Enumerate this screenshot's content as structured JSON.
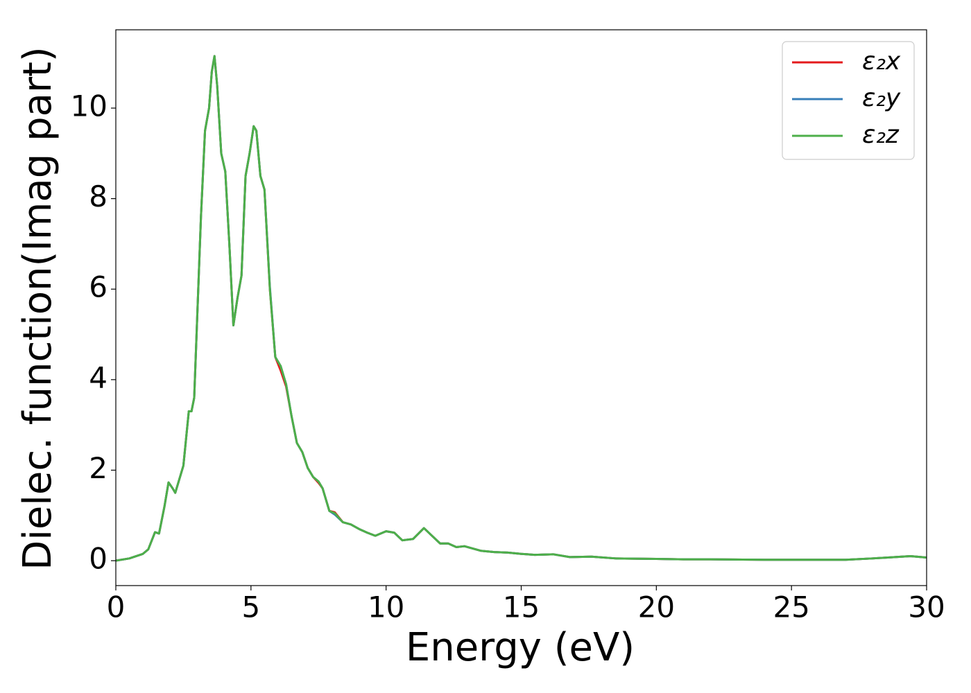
{
  "chart_data": {
    "type": "line",
    "x_label": "Energy (eV)",
    "y_label": "Dielec. function(Imag part)",
    "xlim": [
      0,
      30
    ],
    "xticks": [
      0,
      5,
      10,
      15,
      20,
      25,
      30
    ],
    "ylim": [
      -0.55,
      11.73
    ],
    "yticks": [
      0,
      2,
      4,
      6,
      8,
      10
    ],
    "legend": "upper right",
    "x": [
      0,
      0.5,
      1.0,
      1.2,
      1.45,
      1.6,
      1.8,
      1.95,
      2.1,
      2.2,
      2.5,
      2.7,
      2.8,
      2.9,
      3.0,
      3.15,
      3.3,
      3.45,
      3.55,
      3.65,
      3.75,
      3.9,
      4.05,
      4.2,
      4.35,
      4.5,
      4.65,
      4.8,
      4.95,
      5.1,
      5.2,
      5.35,
      5.5,
      5.7,
      5.9,
      6.1,
      6.3,
      6.5,
      6.7,
      6.9,
      7.1,
      7.3,
      7.5,
      7.65,
      7.9,
      8.1,
      8.4,
      8.7,
      9.0,
      9.3,
      9.6,
      10.0,
      10.3,
      10.6,
      11.0,
      11.4,
      11.7,
      12.0,
      12.3,
      12.6,
      12.9,
      13.5,
      14.0,
      14.5,
      15.0,
      15.5,
      16.2,
      16.8,
      17.6,
      18.5,
      20,
      21,
      22,
      24,
      26,
      27,
      28,
      29.4,
      30
    ],
    "series": [
      {
        "name": "ε₂x",
        "color": "#e41a1c",
        "values": [
          0,
          0.05,
          0.15,
          0.25,
          0.63,
          0.6,
          1.2,
          1.73,
          1.6,
          1.5,
          2.1,
          3.3,
          3.3,
          3.6,
          5.2,
          7.6,
          9.5,
          10.0,
          10.8,
          11.15,
          10.5,
          9.0,
          8.6,
          7.0,
          5.2,
          5.8,
          6.3,
          8.5,
          9.0,
          9.6,
          9.5,
          8.5,
          8.2,
          6.0,
          4.5,
          4.2,
          3.85,
          3.2,
          2.6,
          2.4,
          2.05,
          1.85,
          1.72,
          1.6,
          1.1,
          1.07,
          0.85,
          0.8,
          0.7,
          0.62,
          0.55,
          0.65,
          0.62,
          0.45,
          0.48,
          0.72,
          0.55,
          0.38,
          0.38,
          0.3,
          0.32,
          0.22,
          0.19,
          0.18,
          0.15,
          0.13,
          0.14,
          0.08,
          0.09,
          0.05,
          0.04,
          0.03,
          0.03,
          0.02,
          0.02,
          0.02,
          0.05,
          0.1,
          0.07
        ]
      },
      {
        "name": "ε₂y",
        "color": "#377eb8",
        "values": [
          0,
          0.05,
          0.15,
          0.25,
          0.63,
          0.6,
          1.2,
          1.73,
          1.6,
          1.5,
          2.1,
          3.3,
          3.3,
          3.6,
          5.2,
          7.6,
          9.5,
          10.0,
          10.8,
          11.15,
          10.5,
          9.0,
          8.6,
          7.0,
          5.2,
          5.8,
          6.3,
          8.5,
          9.0,
          9.6,
          9.5,
          8.5,
          8.2,
          6.05,
          4.5,
          4.3,
          3.9,
          3.2,
          2.6,
          2.4,
          2.05,
          1.85,
          1.75,
          1.6,
          1.1,
          1.02,
          0.85,
          0.8,
          0.7,
          0.62,
          0.55,
          0.65,
          0.62,
          0.45,
          0.48,
          0.72,
          0.55,
          0.38,
          0.38,
          0.3,
          0.32,
          0.22,
          0.19,
          0.18,
          0.15,
          0.13,
          0.14,
          0.08,
          0.09,
          0.05,
          0.04,
          0.03,
          0.03,
          0.02,
          0.02,
          0.02,
          0.05,
          0.1,
          0.07
        ]
      },
      {
        "name": "ε₂z",
        "color": "#4daf4a",
        "values": [
          0,
          0.05,
          0.15,
          0.25,
          0.63,
          0.6,
          1.2,
          1.73,
          1.6,
          1.5,
          2.1,
          3.3,
          3.3,
          3.6,
          5.2,
          7.6,
          9.5,
          10.0,
          10.8,
          11.15,
          10.5,
          9.0,
          8.6,
          7.0,
          5.2,
          5.8,
          6.3,
          8.5,
          9.0,
          9.6,
          9.5,
          8.5,
          8.2,
          6.0,
          4.5,
          4.3,
          3.9,
          3.2,
          2.6,
          2.4,
          2.05,
          1.85,
          1.75,
          1.6,
          1.1,
          1.05,
          0.85,
          0.8,
          0.7,
          0.62,
          0.55,
          0.65,
          0.62,
          0.45,
          0.48,
          0.72,
          0.55,
          0.38,
          0.38,
          0.3,
          0.32,
          0.22,
          0.19,
          0.18,
          0.15,
          0.13,
          0.14,
          0.08,
          0.09,
          0.05,
          0.04,
          0.03,
          0.03,
          0.02,
          0.02,
          0.02,
          0.05,
          0.1,
          0.07
        ]
      }
    ]
  }
}
